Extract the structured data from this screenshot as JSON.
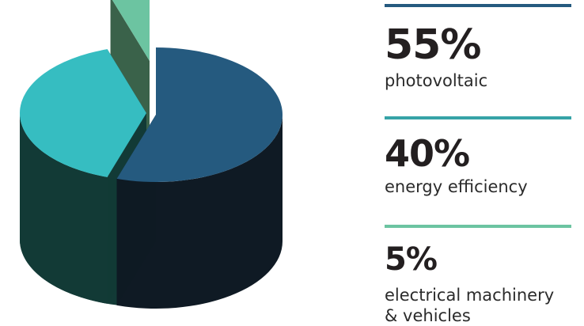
{
  "chart_data": {
    "type": "pie",
    "style": "3d-exploded",
    "slices": [
      {
        "value": 55,
        "percent_label": "55%",
        "label": "photovoltaic",
        "color": "#255a7f",
        "side_color": "#0f1a24"
      },
      {
        "value": 40,
        "percent_label": "40%",
        "label": "energy efficiency",
        "color": "#36bdc1",
        "side_color": "#123a36"
      },
      {
        "value": 5,
        "percent_label": "5%",
        "label": "electrical machinery & vehicles",
        "label_lines": [
          "electrical machinery",
          "& vehicles"
        ],
        "color": "#6cc4a1",
        "side_color": "#2f5a40"
      }
    ],
    "legend_bar_colors": [
      "#255a7f",
      "#36a3a7",
      "#6cc4a1"
    ]
  }
}
